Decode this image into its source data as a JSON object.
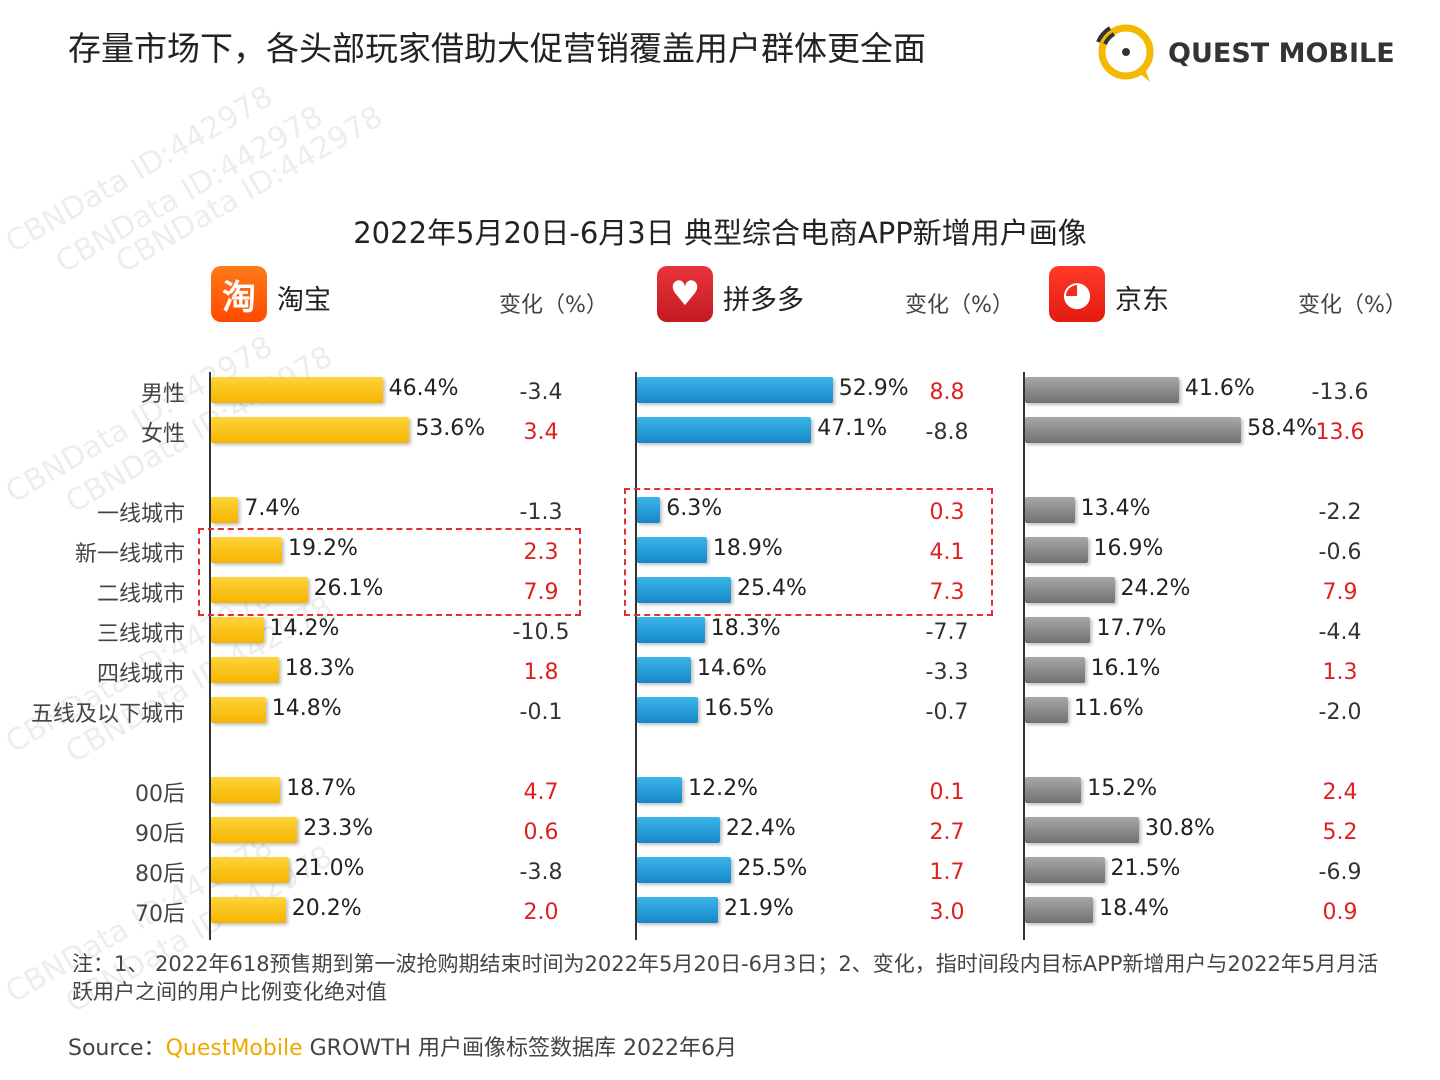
{
  "page_title": "存量市场下，各头部玩家借助大促营销覆盖用户群体更全面",
  "logo": {
    "text": "QUEST MOBILE",
    "color": "#f5b800"
  },
  "watermark": "CBNData ID:442978",
  "chart_data": {
    "type": "bar",
    "orientation": "horizontal",
    "title": "2022年5月20日-6月3日 典型综合电商APP新增用户画像",
    "change_header": "变化（%）",
    "categories": [
      "男性",
      "女性",
      "一线城市",
      "新一线城市",
      "二线城市",
      "三线城市",
      "四线城市",
      "五线及以下城市",
      "00后",
      "90后",
      "80后",
      "70后"
    ],
    "groups": [
      {
        "name": "淘宝",
        "color": "#fbc020",
        "icon": "taobao-app-icon",
        "values": [
          46.4,
          53.6,
          7.4,
          19.2,
          26.1,
          14.2,
          18.3,
          14.8,
          18.7,
          23.3,
          21.0,
          20.2
        ],
        "changes": [
          -3.4,
          3.4,
          -1.3,
          2.3,
          7.9,
          -10.5,
          1.8,
          -0.1,
          4.7,
          0.6,
          -3.8,
          2.0
        ],
        "highlight": [
          "新一线城市",
          "二线城市"
        ]
      },
      {
        "name": "拼多多",
        "color": "#1e9bd7",
        "icon": "pinduoduo-app-icon",
        "values": [
          52.9,
          47.1,
          6.3,
          18.9,
          25.4,
          18.3,
          14.6,
          16.5,
          12.2,
          22.4,
          25.5,
          21.9
        ],
        "changes": [
          8.8,
          -8.8,
          0.3,
          4.1,
          7.3,
          -7.7,
          -3.3,
          -0.7,
          0.1,
          2.7,
          1.7,
          3.0
        ],
        "highlight": [
          "一线城市",
          "新一线城市",
          "二线城市"
        ]
      },
      {
        "name": "京东",
        "color": "#8c8c8c",
        "icon": "jd-app-icon",
        "values": [
          41.6,
          58.4,
          13.4,
          16.9,
          24.2,
          17.7,
          16.1,
          11.6,
          15.2,
          30.8,
          21.5,
          18.4
        ],
        "changes": [
          -13.6,
          13.6,
          -2.2,
          -0.6,
          7.9,
          -4.4,
          1.3,
          -2.0,
          2.4,
          5.2,
          -6.9,
          0.9
        ],
        "highlight": []
      }
    ],
    "value_unit": "%",
    "positive_change_color": "#e02020",
    "negative_change_color": "#333333"
  },
  "note": "注：1、 2022年618预售期到第一波抢购期结束时间为2022年5月20日-6月3日；2、变化，指时间段内目标APP新增用户与2022年5月月活跃用户之间的用户比例变化绝对值",
  "source": {
    "prefix": "Source：",
    "brand": "QuestMobile",
    "rest": " GROWTH 用户画像标签数据库 2022年6月"
  }
}
